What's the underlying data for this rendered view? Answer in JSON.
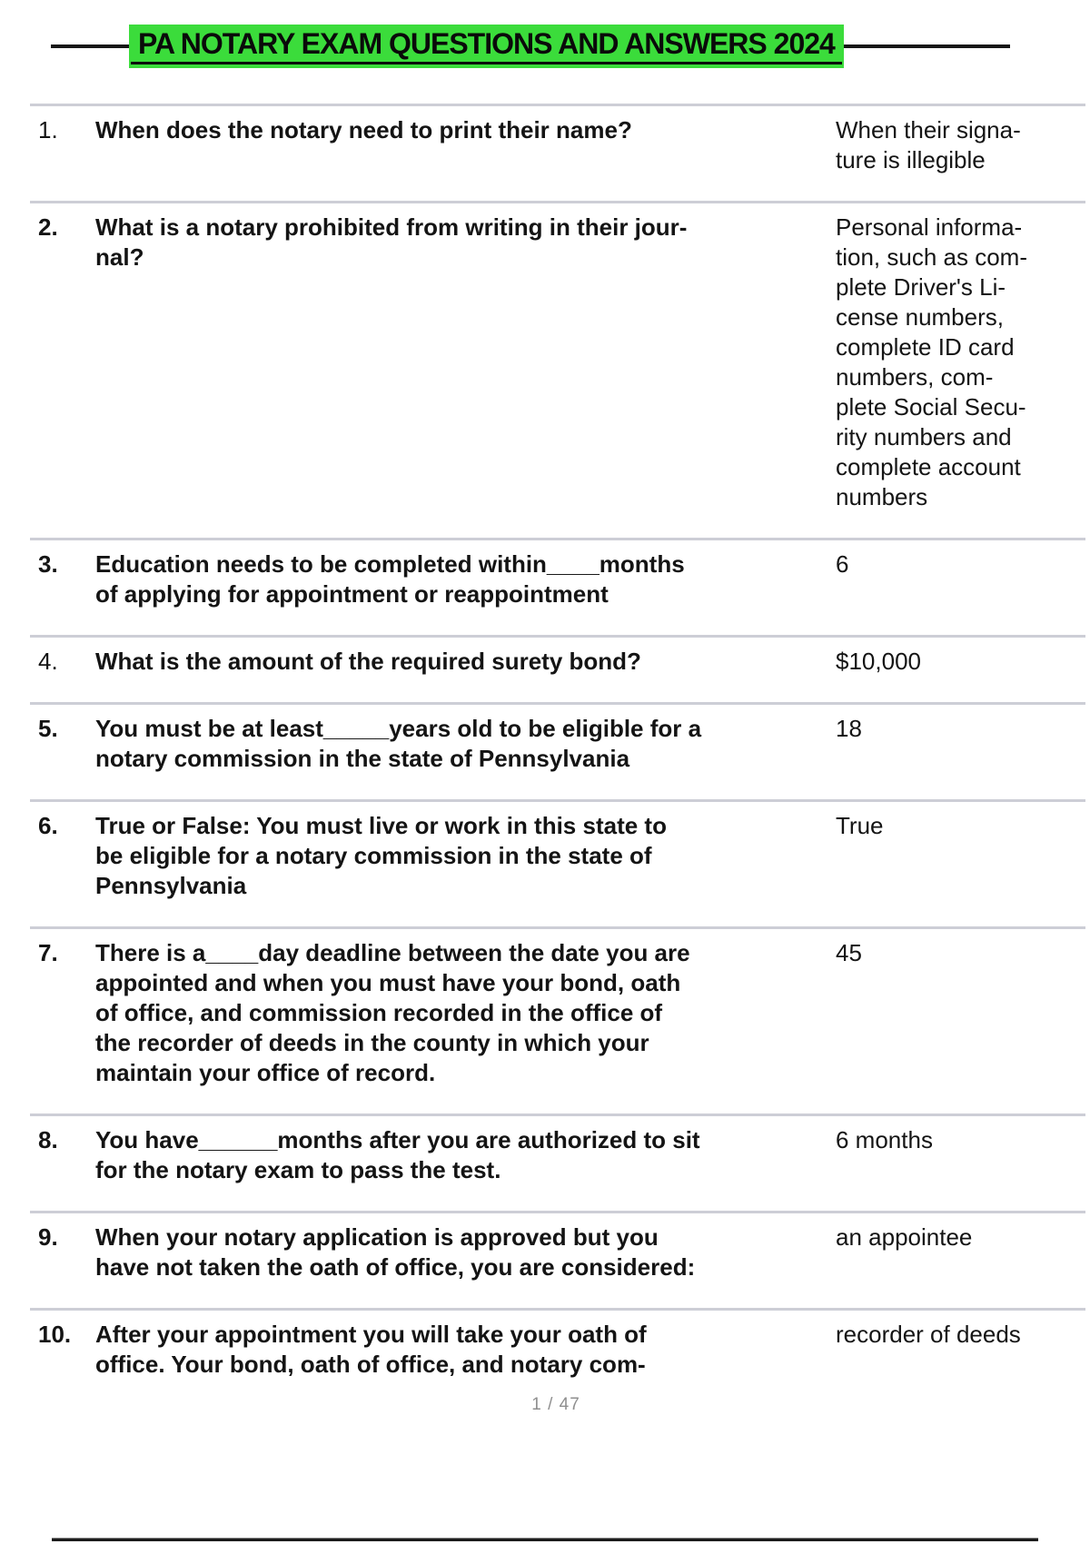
{
  "title": {
    "text": "PA NOTARY EXAM QUESTIONS AND ANSWERS 2024",
    "highlight_color": "#3BDC3B"
  },
  "rows": [
    {
      "num": "1.",
      "num_bold": false,
      "question": "When does the notary need to print their name?",
      "answer": "When their signa-\nture is illegible"
    },
    {
      "num": "2.",
      "num_bold": true,
      "question": "What is a notary prohibited from writing in their jour-\nnal?",
      "answer": "Personal informa-\ntion, such as com-\nplete Driver's Li-\ncense numbers,\ncomplete ID card\nnumbers, com-\nplete Social Secu-\nrity numbers and\ncomplete account\nnumbers"
    },
    {
      "num": "3.",
      "num_bold": true,
      "question": "Education needs to be completed within____months\nof applying for appointment or reappointment",
      "answer": "6"
    },
    {
      "num": "4.",
      "num_bold": false,
      "question": "What is the amount of the required surety bond?",
      "answer": "$10,000"
    },
    {
      "num": "5.",
      "num_bold": true,
      "question": "You must be at least_____years old to be eligible for a\nnotary commission in the state of Pennsylvania",
      "answer": "18"
    },
    {
      "num": "6.",
      "num_bold": true,
      "question": "True or False: You must live or work in this state to\nbe eligible for a notary commission in the state of\nPennsylvania",
      "answer": "True"
    },
    {
      "num": "7.",
      "num_bold": true,
      "question": "There is a____day deadline between the date you are\nappointed and when you must have your bond, oath\nof office, and commission recorded in the office of\nthe recorder of deeds in the county in which your\nmaintain your office of record.",
      "answer": "45"
    },
    {
      "num": "8.",
      "num_bold": true,
      "question": "You have______months after you are authorized to sit\nfor the notary exam to pass the test.",
      "answer": "6 months"
    },
    {
      "num": "9.",
      "num_bold": true,
      "question": "When your notary application is approved but you\nhave not taken the oath of office, you are considered:",
      "answer": "an appointee"
    },
    {
      "num": "10.",
      "num_bold": true,
      "question": "After your appointment you will take your oath of\noffice. Your bond, oath of office, and notary com-",
      "answer": "recorder of deeds"
    }
  ],
  "footer": {
    "page_indicator": "1 / 47"
  }
}
